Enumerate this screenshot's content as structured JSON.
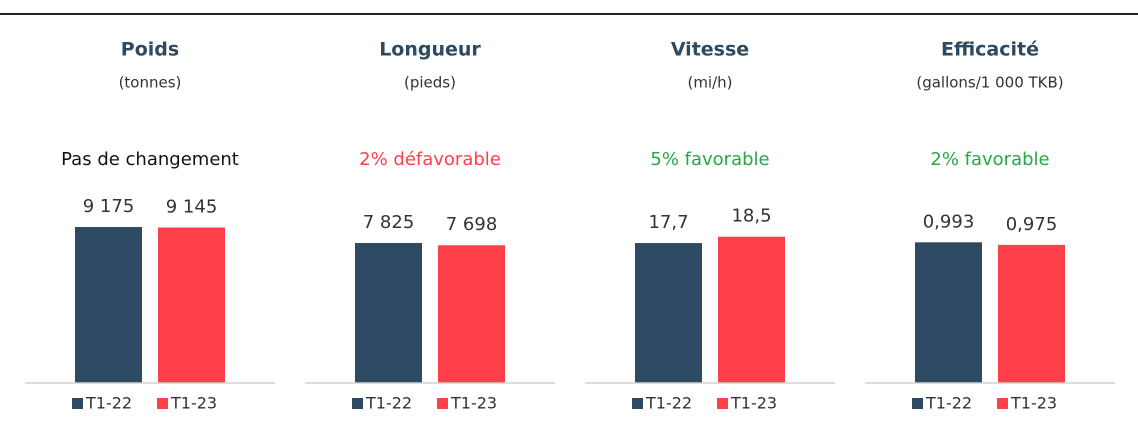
{
  "chart_data": [
    {
      "type": "bar",
      "title": "Poids",
      "subtitle": "(tonnes)",
      "annotation": "Pas de changement",
      "annotation_color": "#111111",
      "ylim": [
        0,
        10000
      ],
      "series": [
        {
          "name": "T1-22",
          "color": "#2e4a62",
          "values": [
            9175
          ],
          "value_labels": [
            "9 175"
          ]
        },
        {
          "name": "T1-23",
          "color": "#ff3f4a",
          "values": [
            9145
          ],
          "value_labels": [
            "9 145"
          ]
        }
      ]
    },
    {
      "type": "bar",
      "title": "Longueur",
      "subtitle": "(pieds)",
      "annotation": "2% défavorable",
      "annotation_color": "#ff3f4a",
      "ylim": [
        0,
        9500
      ],
      "series": [
        {
          "name": "T1-22",
          "color": "#2e4a62",
          "values": [
            7825
          ],
          "value_labels": [
            "7 825"
          ]
        },
        {
          "name": "T1-23",
          "color": "#ff3f4a",
          "values": [
            7698
          ],
          "value_labels": [
            "7 698"
          ]
        }
      ]
    },
    {
      "type": "bar",
      "title": "Vitesse",
      "subtitle": "(mi/h)",
      "annotation": "5% favorable",
      "annotation_color": "#27a844",
      "ylim": [
        0,
        21.5
      ],
      "series": [
        {
          "name": "T1-22",
          "color": "#2e4a62",
          "values": [
            17.7
          ],
          "value_labels": [
            "17,7"
          ]
        },
        {
          "name": "T1-23",
          "color": "#ff3f4a",
          "values": [
            18.5
          ],
          "value_labels": [
            "18,5"
          ]
        }
      ]
    },
    {
      "type": "bar",
      "title": "Efficacité",
      "subtitle": "(gallons/1 000 TKB)",
      "annotation": "2% favorable",
      "annotation_color": "#27a844",
      "ylim": [
        0,
        1.2
      ],
      "series": [
        {
          "name": "T1-22",
          "color": "#2e4a62",
          "values": [
            0.993
          ],
          "value_labels": [
            "0,993"
          ]
        },
        {
          "name": "T1-23",
          "color": "#ff3f4a",
          "values": [
            0.975
          ],
          "value_labels": [
            "0,975"
          ]
        }
      ]
    }
  ]
}
